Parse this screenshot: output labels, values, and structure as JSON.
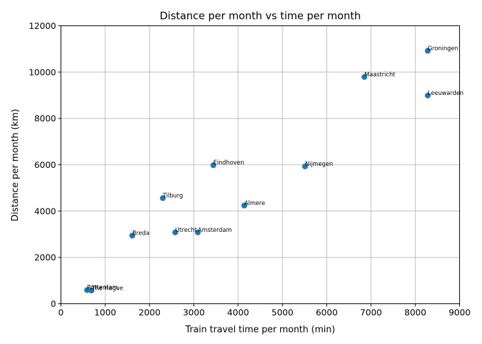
{
  "chart_data": {
    "type": "scatter",
    "title": "Distance per month vs time per month",
    "xlabel": "Train travel time per month (min)",
    "ylabel": "Distance per month (km)",
    "xlim": [
      0,
      9000
    ],
    "ylim": [
      0,
      12000
    ],
    "xticks": [
      "0",
      "1000",
      "2000",
      "3000",
      "4000",
      "5000",
      "6000",
      "7000",
      "8000",
      "9000"
    ],
    "yticks": [
      "0",
      "2000",
      "4000",
      "6000",
      "8000",
      "10000",
      "12000"
    ],
    "grid": true,
    "marker_color": "#1f77b4",
    "points": [
      {
        "label": "Rotterdam",
        "x": 590,
        "y": 590
      },
      {
        "label": "The Hague",
        "x": 690,
        "y": 570
      },
      {
        "label": "Breda",
        "x": 1610,
        "y": 2940
      },
      {
        "label": "Tilburg",
        "x": 2300,
        "y": 4560
      },
      {
        "label": "Utrecht",
        "x": 2580,
        "y": 3080
      },
      {
        "label": "Amsterdam",
        "x": 3090,
        "y": 3080
      },
      {
        "label": "Eindhoven",
        "x": 3440,
        "y": 5980
      },
      {
        "label": "Almere",
        "x": 4140,
        "y": 4240
      },
      {
        "label": "Nijmegen",
        "x": 5510,
        "y": 5930
      },
      {
        "label": "Maastricht",
        "x": 6850,
        "y": 9790
      },
      {
        "label": "Groningen",
        "x": 8280,
        "y": 10920
      },
      {
        "label": "Leeuwarden",
        "x": 8280,
        "y": 8990
      }
    ]
  }
}
